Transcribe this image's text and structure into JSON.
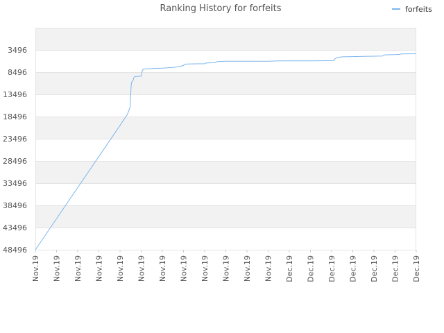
{
  "chart_data": {
    "type": "line",
    "title": "Ranking History for forfeits",
    "xlabel": "",
    "ylabel": "",
    "y_reversed": true,
    "ylim": [
      48496,
      -1504
    ],
    "y_ticks": [
      3496,
      8496,
      13496,
      18496,
      23496,
      28496,
      33496,
      38496,
      43496,
      48496
    ],
    "x_ticks": [
      "Nov.19",
      "Nov.19",
      "Nov.19",
      "Nov.19",
      "Nov.19",
      "Nov.19",
      "Nov.19",
      "Nov.19",
      "Nov.19",
      "Nov.19",
      "Nov.19",
      "Nov.19",
      "Dec.19",
      "Dec.19",
      "Dec.19",
      "Dec.19",
      "Dec.19",
      "Dec.19",
      "Dec.19"
    ],
    "x_range": [
      0,
      18
    ],
    "grid": true,
    "legend_position": "top-right",
    "series": [
      {
        "name": "forfeits",
        "color": "#7cb5ec",
        "points": [
          [
            0.0,
            48496
          ],
          [
            2.0,
            34500
          ],
          [
            4.0,
            20500
          ],
          [
            4.35,
            18000
          ],
          [
            4.48,
            16300
          ],
          [
            4.5,
            14000
          ],
          [
            4.52,
            12000
          ],
          [
            4.54,
            10800
          ],
          [
            4.6,
            10500
          ],
          [
            4.62,
            10300
          ],
          [
            4.65,
            9800
          ],
          [
            4.7,
            9500
          ],
          [
            5.0,
            9400
          ],
          [
            5.02,
            9000
          ],
          [
            5.05,
            8200
          ],
          [
            5.1,
            7800
          ],
          [
            5.5,
            7700
          ],
          [
            5.6,
            7650
          ],
          [
            6.0,
            7600
          ],
          [
            6.5,
            7450
          ],
          [
            6.8,
            7250
          ],
          [
            7.0,
            7000
          ],
          [
            7.05,
            6700
          ],
          [
            7.2,
            6650
          ],
          [
            7.6,
            6620
          ],
          [
            8.0,
            6600
          ],
          [
            8.05,
            6450
          ],
          [
            8.5,
            6350
          ],
          [
            8.6,
            6100
          ],
          [
            9.0,
            6050
          ],
          [
            10.0,
            6050
          ],
          [
            11.0,
            6050
          ],
          [
            11.5,
            5950
          ],
          [
            12.0,
            5950
          ],
          [
            13.0,
            5950
          ],
          [
            14.1,
            5900
          ],
          [
            14.15,
            5500
          ],
          [
            14.3,
            5150
          ],
          [
            14.5,
            5050
          ],
          [
            15.0,
            5000
          ],
          [
            15.5,
            4950
          ],
          [
            16.0,
            4900
          ],
          [
            16.4,
            4850
          ],
          [
            16.5,
            4600
          ],
          [
            17.0,
            4550
          ],
          [
            17.2,
            4500
          ],
          [
            17.3,
            4400
          ],
          [
            18.0,
            4350
          ]
        ]
      }
    ]
  }
}
